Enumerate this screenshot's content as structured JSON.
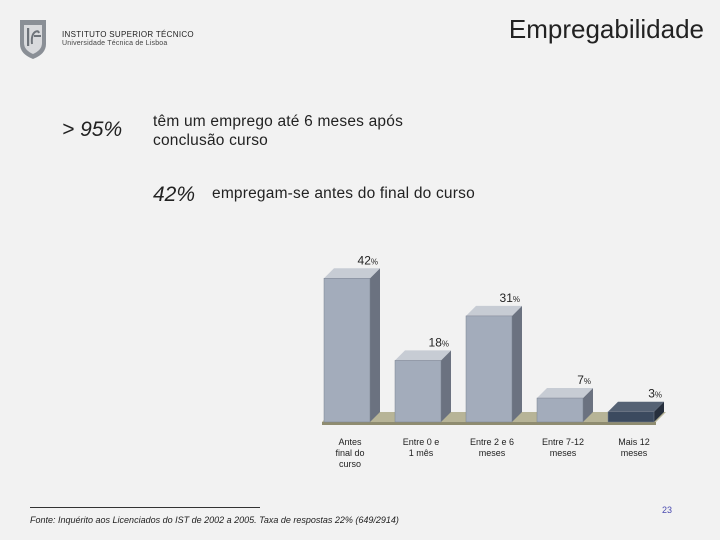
{
  "header": {
    "institution": "INSTITUTO SUPERIOR TÉCNICO",
    "university": "Universidade Técnica de Lisboa",
    "title": "Empregabilidade"
  },
  "stats": [
    {
      "value": "> 95%",
      "text_lines": [
        "têm um emprego até 6 meses após",
        "conclusão curso"
      ]
    },
    {
      "value": "42%",
      "text": "empregam-se antes do final do curso"
    }
  ],
  "chart_data": {
    "type": "bar",
    "categories": [
      [
        "Antes",
        "final do",
        "curso"
      ],
      [
        "Entre 0 e",
        "1 mês"
      ],
      [
        "Entre 2 e 6",
        "meses"
      ],
      [
        "Entre 7-12",
        "meses"
      ],
      [
        "Mais 12",
        "meses"
      ]
    ],
    "values": [
      42,
      18,
      31,
      7,
      3
    ],
    "value_labels": [
      "42%",
      "18%",
      "31%",
      "7%",
      "3%"
    ],
    "ylim": [
      0,
      45
    ],
    "colors": [
      "#a3acbb",
      "#a3acbb",
      "#a3acbb",
      "#a3acbb",
      "#3b4a5f"
    ]
  },
  "footer": {
    "source": "Fonte: Inquérito aos Licenciados do IST de 2002 a 2005. Taxa de respostas 22% (649/2914)",
    "page": "23"
  }
}
